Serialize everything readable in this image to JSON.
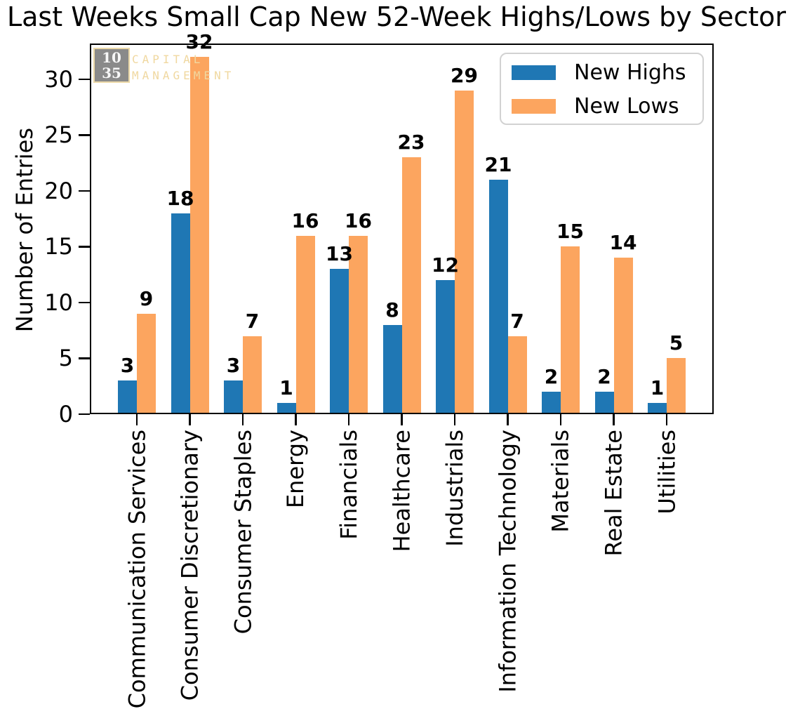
{
  "watermark": {
    "box_line1": "10",
    "box_line2": "35",
    "line1": "CAPITAL",
    "line2": "MANAGEMENT",
    "box_color": "#8a8a8a",
    "box_border_color": "#ecd9a8",
    "text_color": "#f0d8a0"
  },
  "chart_data": {
    "type": "bar",
    "title": "Last Weeks Small Cap New 52-Week Highs/Lows by Sector",
    "xlabel": "",
    "ylabel": "Number of Entries",
    "categories": [
      "Communication Services",
      "Consumer Discretionary",
      "Consumer Staples",
      "Energy",
      "Financials",
      "Healthcare",
      "Industrials",
      "Information Technology",
      "Materials",
      "Real Estate",
      "Utilities"
    ],
    "series": [
      {
        "name": "New Highs",
        "color": "#1f77b4",
        "values": [
          3,
          18,
          3,
          1,
          13,
          8,
          12,
          21,
          2,
          2,
          1
        ]
      },
      {
        "name": "New Lows",
        "color": "#fca55f",
        "values": [
          9,
          32,
          7,
          16,
          16,
          23,
          29,
          7,
          15,
          14,
          5
        ]
      }
    ],
    "ylim": [
      0,
      33.2
    ],
    "yticks": [
      0,
      5,
      10,
      15,
      20,
      25,
      30
    ],
    "grid": false,
    "legend_position": "upper right",
    "bar_value_labels": true
  }
}
